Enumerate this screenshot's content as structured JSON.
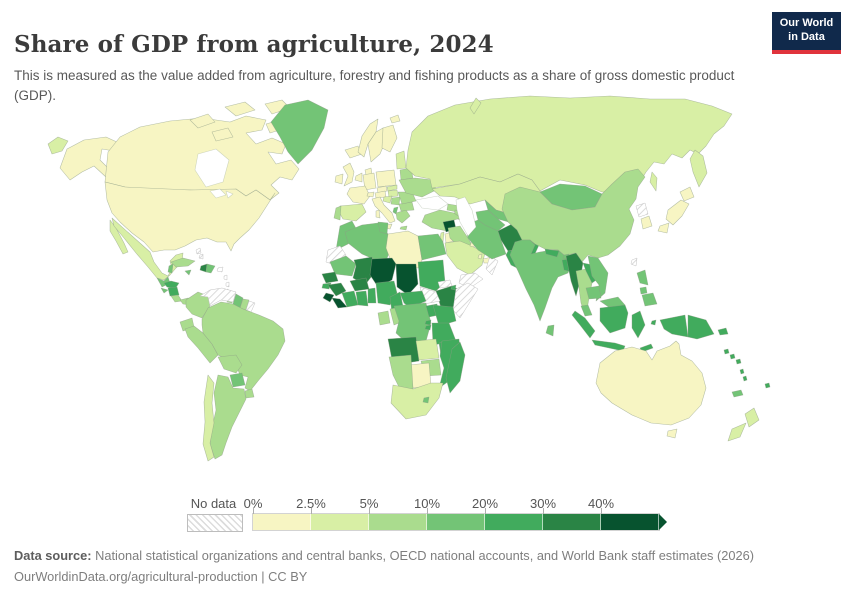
{
  "header": {
    "title": "Share of GDP from agriculture, 2024",
    "subtitle": "This is measured as the value added from agriculture, forestry and fishing products as a share of gross domestic product (GDP).",
    "logo": {
      "line1": "Our World",
      "line2": "in Data",
      "bg_color": "#10294b",
      "accent_color": "#e0333c"
    }
  },
  "legend": {
    "no_data_label": "No data",
    "ticks": [
      "0%",
      "2.5%",
      "5%",
      "10%",
      "20%",
      "30%",
      "40%"
    ],
    "bucket_colors": [
      "#f7f5c3",
      "#d8efa5",
      "#aadc8e",
      "#73c476",
      "#41ab5d",
      "#2a8445",
      "#07532f"
    ]
  },
  "footer": {
    "source_label": "Data source:",
    "source_text": " National statistical organizations and central banks, OECD national accounts, and World Bank staff estimates (2026)",
    "link_line": "OurWorldinData.org/agricultural-production | CC BY"
  },
  "chart_data": {
    "type": "heatmap",
    "subtype": "choropleth-world-map",
    "title": "Share of GDP from agriculture, 2024",
    "unit": "% of GDP",
    "bins": [
      "0-2.5%",
      "2.5-5%",
      "5-10%",
      "10-20%",
      "20-30%",
      "30-40%",
      "40%+"
    ],
    "legend_position": "bottom",
    "note": "country value = bin index 0..6, 'nd' = no data"
  },
  "map": {
    "countries": {
      "united-states": 0,
      "canada": 0,
      "greenland": 3,
      "iceland": 0,
      "mexico": 1,
      "guatemala": 3,
      "belize": 3,
      "honduras": 4,
      "el-salvador": 3,
      "nicaragua": 4,
      "costa-rica": 2,
      "panama": 2,
      "cuba": 2,
      "jamaica": 3,
      "haiti": 5,
      "dominican-republic": 3,
      "puerto-rico": "nd",
      "bahamas": "nd",
      "lesser-antilles": "nd",
      "trinidad": 2,
      "colombia": 2,
      "venezuela": "nd",
      "guyana": 3,
      "suriname": 2,
      "french-guiana": "nd",
      "ecuador": 2,
      "peru": 2,
      "brazil": 2,
      "bolivia": 2,
      "paraguay": 3,
      "uruguay": 2,
      "argentina": 2,
      "chile": 1,
      "norway": 0,
      "sweden": 0,
      "finland": 0,
      "denmark": 0,
      "uk": 0,
      "ireland": 0,
      "netherlands": 0,
      "germany": 0,
      "poland": 0,
      "france": 0,
      "spain": 1,
      "portugal": 2,
      "switzerland": 0,
      "czechia": 0,
      "austria": 0,
      "italy": 0,
      "hungary": 1,
      "slovakia": 1,
      "croatia": 1,
      "serbia": 2,
      "albania": 3,
      "greece": 2,
      "bulgaria": 2,
      "romania": 2,
      "moldova": 3,
      "baltics": 1,
      "belarus": 2,
      "ukraine": 2,
      "russia": 1,
      "georgia": 2,
      "armenia": 3,
      "azerbaijan": 2,
      "turkey": 2,
      "syria": 6,
      "israel": 1,
      "jordan": 0,
      "iraq": 2,
      "saudi-arabia": 1,
      "kuwait": 0,
      "qatar": 0,
      "uae": 0,
      "oman": "nd",
      "yemen": "nd",
      "iran": 3,
      "kazakhstan": 1,
      "uzbekistan": 3,
      "turkmenistan": 3,
      "kyrgyzstan": 3,
      "tajikistan": 5,
      "afghanistan": 5,
      "pakistan": 4,
      "morocco": 3,
      "western-sahara": "nd",
      "algeria": 3,
      "tunisia": 3,
      "libya": 0,
      "egypt": 3,
      "mauritania": 3,
      "mali": 5,
      "niger": 6,
      "chad": 6,
      "sudan": 4,
      "eritrea": "nd",
      "ethiopia": 5,
      "djibouti": 4,
      "somalia": "nd",
      "south-sudan": "nd",
      "senegal": 5,
      "guinea-bissau": 4,
      "guinea": 5,
      "sierra-leone": 6,
      "liberia": 6,
      "ivory-coast": 4,
      "ghana": 4,
      "togo-benin": 4,
      "burkina-faso": 5,
      "nigeria": 4,
      "cameroon": 4,
      "central-african-republic": 4,
      "gabon": 2,
      "congo": 2,
      "drc": 3,
      "uganda": 4,
      "kenya": 4,
      "rwanda": 4,
      "burundi": 4,
      "tanzania": 4,
      "angola": 5,
      "zambia": 1,
      "malawi": 4,
      "mozambique": 4,
      "zimbabwe": 2,
      "botswana": 0,
      "namibia": 2,
      "south-africa": 1,
      "lesotho": 3,
      "madagascar": 4,
      "mongolia": 3,
      "china": 2,
      "north-korea": "nd",
      "south-korea": 0,
      "japan": 0,
      "taiwan": "nd",
      "india": 3,
      "nepal": 4,
      "bhutan": 3,
      "bangladesh": 4,
      "sri-lanka": 3,
      "myanmar": 5,
      "thailand": 2,
      "laos": 4,
      "vietnam": 3,
      "cambodia": 3,
      "malaysia": 3,
      "philippines": 3,
      "indonesia": 4,
      "timor-leste": 4,
      "papua-new-guinea": 4,
      "australia": 0,
      "new-zealand": 1,
      "new-caledonia": 3,
      "fiji": 4,
      "vanuatu": 4,
      "solomon-islands": 4
    }
  }
}
